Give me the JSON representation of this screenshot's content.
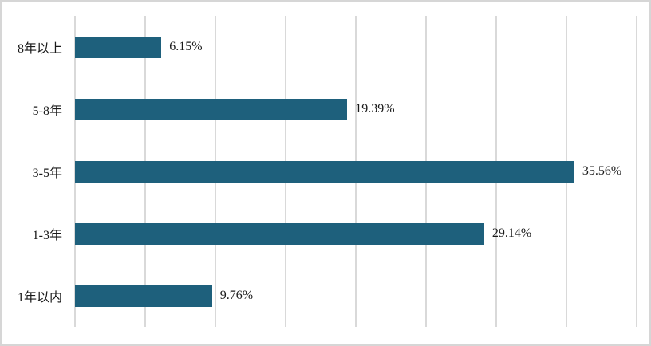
{
  "chart": {
    "background_color": "#ffffff",
    "border_color": "#d6d6d6",
    "gridline_color": "#d9d9d9",
    "bar_color": "#1e607c",
    "text_color": "#1a1a1a"
  },
  "chart_data": {
    "type": "bar",
    "orientation": "horizontal",
    "title": "",
    "xlabel": "",
    "ylabel": "",
    "categories": [
      "8年以上",
      "5-8年",
      "3-5年",
      "1-3年",
      "1年以内"
    ],
    "values": [
      6.15,
      19.39,
      35.56,
      29.14,
      9.76
    ],
    "value_labels": [
      "6.15%",
      "19.39%",
      "35.56%",
      "29.14%",
      "9.76%"
    ],
    "xlim": [
      0,
      40
    ],
    "x_gridline_step": 5,
    "x_tick_labels_visible": false,
    "grid": true,
    "legend": false
  }
}
